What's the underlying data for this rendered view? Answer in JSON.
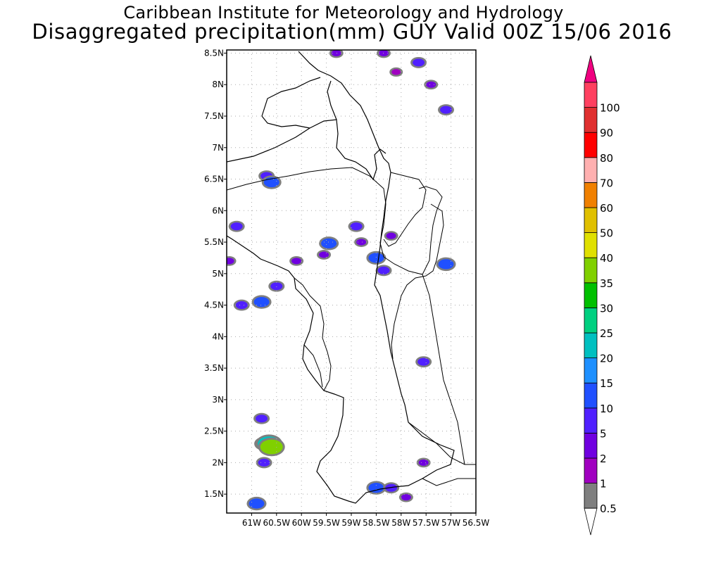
{
  "title": {
    "line1": "Caribbean Institute for Meteorology and Hydrology",
    "line2": "Disaggregated precipitation(mm) GUY Valid 00Z 15/06 2016"
  },
  "map": {
    "lon_range": [
      -61.5,
      -56.5
    ],
    "lat_range": [
      1.2,
      8.55
    ],
    "lat_ticks": [
      {
        "value": 8.5,
        "label": "8.5N"
      },
      {
        "value": 8,
        "label": "8N"
      },
      {
        "value": 7.5,
        "label": "7.5N"
      },
      {
        "value": 7,
        "label": "7N"
      },
      {
        "value": 6.5,
        "label": "6.5N"
      },
      {
        "value": 6,
        "label": "6N"
      },
      {
        "value": 5.5,
        "label": "5.5N"
      },
      {
        "value": 5,
        "label": "5N"
      },
      {
        "value": 4.5,
        "label": "4.5N"
      },
      {
        "value": 4,
        "label": "4N"
      },
      {
        "value": 3.5,
        "label": "3.5N"
      },
      {
        "value": 3,
        "label": "3N"
      },
      {
        "value": 2.5,
        "label": "2.5N"
      },
      {
        "value": 2,
        "label": "2N"
      },
      {
        "value": 1.5,
        "label": "1.5N"
      }
    ],
    "lon_ticks": [
      {
        "value": -61,
        "label": "61W"
      },
      {
        "value": -60.5,
        "label": "60.5W"
      },
      {
        "value": -60,
        "label": "60W"
      },
      {
        "value": -59.5,
        "label": "59.5W"
      },
      {
        "value": -59,
        "label": "59W"
      },
      {
        "value": -58.5,
        "label": "58.5W"
      },
      {
        "value": -58,
        "label": "58W"
      },
      {
        "value": -57.5,
        "label": "57.5W"
      },
      {
        "value": -57,
        "label": "57W"
      },
      {
        "value": -56.5,
        "label": "56.5W"
      }
    ],
    "border_color": "#000000",
    "grid_color": "#aaaaaa"
  },
  "colorbar": {
    "labels": [
      "0.5",
      "1",
      "2",
      "5",
      "10",
      "15",
      "20",
      "25",
      "30",
      "35",
      "40",
      "50",
      "60",
      "70",
      "80",
      "90",
      "100"
    ],
    "colors": [
      "#7f7f7f",
      "#a000c0",
      "#7000e0",
      "#5020ff",
      "#2050ff",
      "#1e90ff",
      "#00c0c0",
      "#00d080",
      "#00c000",
      "#80d000",
      "#e0e000",
      "#e0c000",
      "#f08000",
      "#ffb0b0",
      "#ff0000",
      "#e03030",
      "#ff4060"
    ],
    "over_color": "#f00080",
    "under_color": "#ffffff"
  },
  "precip_cells": [
    {
      "lon": -60.7,
      "lat": 6.55,
      "mm": 5
    },
    {
      "lon": -60.6,
      "lat": 6.45,
      "mm": 10
    },
    {
      "lon": -61.3,
      "lat": 5.75,
      "mm": 5
    },
    {
      "lon": -61.45,
      "lat": 5.2,
      "mm": 2
    },
    {
      "lon": -59.45,
      "lat": 5.48,
      "mm": 10
    },
    {
      "lon": -59.55,
      "lat": 5.3,
      "mm": 2
    },
    {
      "lon": -58.9,
      "lat": 5.75,
      "mm": 5
    },
    {
      "lon": -58.8,
      "lat": 5.5,
      "mm": 2
    },
    {
      "lon": -58.5,
      "lat": 5.25,
      "mm": 10
    },
    {
      "lon": -58.35,
      "lat": 5.05,
      "mm": 5
    },
    {
      "lon": -57.1,
      "lat": 5.15,
      "mm": 10
    },
    {
      "lon": -61.2,
      "lat": 4.5,
      "mm": 5
    },
    {
      "lon": -60.8,
      "lat": 4.55,
      "mm": 10
    },
    {
      "lon": -60.5,
      "lat": 4.8,
      "mm": 5
    },
    {
      "lon": -60.75,
      "lat": 2.3,
      "mm": 10
    },
    {
      "lon": -60.65,
      "lat": 2.3,
      "mm": 20
    },
    {
      "lon": -60.6,
      "lat": 2.25,
      "mm": 35
    },
    {
      "lon": -60.75,
      "lat": 2.0,
      "mm": 5
    },
    {
      "lon": -60.8,
      "lat": 2.7,
      "mm": 5
    },
    {
      "lon": -60.9,
      "lat": 1.35,
      "mm": 10
    },
    {
      "lon": -58.5,
      "lat": 1.6,
      "mm": 10
    },
    {
      "lon": -58.2,
      "lat": 1.6,
      "mm": 5
    },
    {
      "lon": -57.55,
      "lat": 3.6,
      "mm": 5
    },
    {
      "lon": -57.1,
      "lat": 7.6,
      "mm": 5
    },
    {
      "lon": -57.4,
      "lat": 8.0,
      "mm": 2
    },
    {
      "lon": -57.65,
      "lat": 8.35,
      "mm": 5
    },
    {
      "lon": -59.3,
      "lat": 8.5,
      "mm": 2
    },
    {
      "lon": -58.2,
      "lat": 5.6,
      "mm": 2
    },
    {
      "lon": -60.1,
      "lat": 5.2,
      "mm": 2
    },
    {
      "lon": -58.35,
      "lat": 8.5,
      "mm": 2
    },
    {
      "lon": -58.1,
      "lat": 8.2,
      "mm": 1
    },
    {
      "lon": -57.55,
      "lat": 2.0,
      "mm": 2
    },
    {
      "lon": -57.9,
      "lat": 1.45,
      "mm": 2
    }
  ]
}
